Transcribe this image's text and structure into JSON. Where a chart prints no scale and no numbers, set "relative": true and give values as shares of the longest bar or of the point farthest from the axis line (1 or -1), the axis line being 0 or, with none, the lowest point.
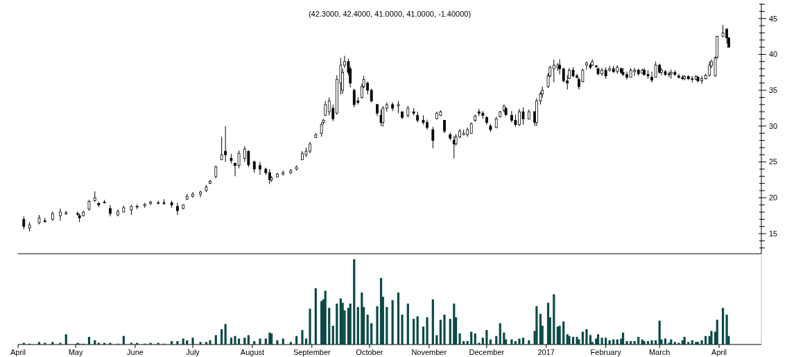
{
  "chart_data": [
    {
      "type": "candlestick",
      "title": "(42.3000, 42.4000, 41.0000, 41.0000, -1.40000)",
      "color": "#000000",
      "x": [
        "2016-04-04",
        "2016-04-07",
        "2016-04-12",
        "2016-04-15",
        "2016-04-19",
        "2016-04-23",
        "2016-04-26",
        "2016-05-02",
        "2016-05-03",
        "2016-05-05",
        "2016-05-08",
        "2016-05-11",
        "2016-05-13",
        "2016-05-16",
        "2016-05-19",
        "2016-05-23",
        "2016-05-26",
        "2016-05-30",
        "2016-06-02",
        "2016-06-06",
        "2016-06-09",
        "2016-06-13",
        "2016-06-16",
        "2016-06-20",
        "2016-06-23",
        "2016-06-26",
        "2016-06-28",
        "2016-07-01",
        "2016-07-05",
        "2016-07-08",
        "2016-07-10",
        "2016-07-13",
        "2016-07-16",
        "2016-07-18",
        "2016-07-21",
        "2016-07-23",
        "2016-07-25",
        "2016-07-28",
        "2016-07-30",
        "2016-08-02",
        "2016-08-05",
        "2016-08-08",
        "2016-08-10",
        "2016-08-11",
        "2016-08-14",
        "2016-08-17",
        "2016-08-21",
        "2016-08-24",
        "2016-08-27",
        "2016-08-29",
        "2016-08-31",
        "2016-09-03",
        "2016-09-06",
        "2016-09-07",
        "2016-09-08",
        "2016-09-10",
        "2016-09-12",
        "2016-09-14",
        "2016-09-16",
        "2016-09-17",
        "2016-09-18",
        "2016-09-20",
        "2016-09-21",
        "2016-09-23",
        "2016-09-25",
        "2016-09-27",
        "2016-09-28",
        "2016-09-30",
        "2016-10-02",
        "2016-10-05",
        "2016-10-07",
        "2016-10-08",
        "2016-10-10",
        "2016-10-13",
        "2016-10-16",
        "2016-10-18",
        "2016-10-21",
        "2016-10-24",
        "2016-10-26",
        "2016-10-29",
        "2016-10-31",
        "2016-11-03",
        "2016-11-05",
        "2016-11-07",
        "2016-11-09",
        "2016-11-12",
        "2016-11-14",
        "2016-11-15",
        "2016-11-17",
        "2016-11-19",
        "2016-11-21",
        "2016-11-23",
        "2016-11-25",
        "2016-11-27",
        "2016-11-29",
        "2016-12-01",
        "2016-12-03",
        "2016-12-06",
        "2016-12-08",
        "2016-12-10",
        "2016-12-11",
        "2016-12-14",
        "2016-12-16",
        "2016-12-18",
        "2016-12-20",
        "2016-12-23",
        "2016-12-26",
        "2016-12-27",
        "2016-12-29",
        "2016-12-30",
        "2017-01-02",
        "2017-01-03",
        "2017-01-05",
        "2017-01-07",
        "2017-01-08",
        "2017-01-10",
        "2017-01-12",
        "2017-01-13",
        "2017-01-15",
        "2017-01-17",
        "2017-01-18",
        "2017-01-20",
        "2017-01-22",
        "2017-01-24",
        "2017-01-25",
        "2017-01-27",
        "2017-01-28",
        "2017-01-30",
        "2017-02-01",
        "2017-02-03",
        "2017-02-05",
        "2017-02-07",
        "2017-02-09",
        "2017-02-10",
        "2017-02-12",
        "2017-02-14",
        "2017-02-16",
        "2017-02-18",
        "2017-02-20",
        "2017-02-21",
        "2017-02-23",
        "2017-02-25",
        "2017-02-27",
        "2017-03-01",
        "2017-03-02",
        "2017-03-04",
        "2017-03-06",
        "2017-03-07",
        "2017-03-09",
        "2017-03-11",
        "2017-03-13",
        "2017-03-14",
        "2017-03-16",
        "2017-03-18",
        "2017-03-20",
        "2017-03-21",
        "2017-03-23",
        "2017-03-25",
        "2017-03-27",
        "2017-03-28",
        "2017-03-30",
        "2017-03-31",
        "2017-04-03",
        "2017-04-05",
        "2017-04-06"
      ],
      "ohlc": [
        [
          17.0,
          17.4,
          15.6,
          16.0
        ],
        [
          15.8,
          16.6,
          15.3,
          16.2
        ],
        [
          16.5,
          17.6,
          16.3,
          17.2
        ],
        [
          16.8,
          17.2,
          16.5,
          16.7
        ],
        [
          17.0,
          18.1,
          16.8,
          17.8
        ],
        [
          17.5,
          18.5,
          16.8,
          18.0
        ],
        [
          17.8,
          18.2,
          17.6,
          17.9
        ],
        [
          17.8,
          18.1,
          17.5,
          17.7
        ],
        [
          17.5,
          17.8,
          16.6,
          17.2
        ],
        [
          17.5,
          18.2,
          17.4,
          18.0
        ],
        [
          18.4,
          19.7,
          18.2,
          19.5
        ],
        [
          19.6,
          20.9,
          19.4,
          20.0
        ],
        [
          19.2,
          19.4,
          18.7,
          19.0
        ],
        [
          19.4,
          19.7,
          19.2,
          19.3
        ],
        [
          18.5,
          19.0,
          17.4,
          17.8
        ],
        [
          17.6,
          18.4,
          17.4,
          18.1
        ],
        [
          18.0,
          18.9,
          18.0,
          18.6
        ],
        [
          18.3,
          19.0,
          17.6,
          18.8
        ],
        [
          18.7,
          19.1,
          18.4,
          18.8
        ],
        [
          18.9,
          19.3,
          18.6,
          19.1
        ],
        [
          19.2,
          19.6,
          19.0,
          19.4
        ],
        [
          19.2,
          19.6,
          19.1,
          19.3
        ],
        [
          19.3,
          19.8,
          19.0,
          19.2
        ],
        [
          19.3,
          19.6,
          18.6,
          19.0
        ],
        [
          18.8,
          19.3,
          17.6,
          18.2
        ],
        [
          18.5,
          19.1,
          18.4,
          19.0
        ],
        [
          19.8,
          20.5,
          19.7,
          20.2
        ],
        [
          20.2,
          20.8,
          20.0,
          20.5
        ],
        [
          20.5,
          21.0,
          20.1,
          20.8
        ],
        [
          21.0,
          21.8,
          20.8,
          21.5
        ],
        [
          22.0,
          22.5,
          21.9,
          22.3
        ],
        [
          23.0,
          24.5,
          22.7,
          24.3
        ],
        [
          25.3,
          28.5,
          25.3,
          26.0
        ],
        [
          26.5,
          30.0,
          25.0,
          26.0
        ],
        [
          25.5,
          26.1,
          24.8,
          25.2
        ],
        [
          24.8,
          24.9,
          23.0,
          24.5
        ],
        [
          24.5,
          26.6,
          24.1,
          26.2
        ],
        [
          25.5,
          27.2,
          25.0,
          26.8
        ],
        [
          26.5,
          26.6,
          24.3,
          24.6
        ],
        [
          25.0,
          25.2,
          23.5,
          24.0
        ],
        [
          24.5,
          25.0,
          23.2,
          24.0
        ],
        [
          24.0,
          24.2,
          23.2,
          23.5
        ],
        [
          23.5,
          24.0,
          21.9,
          22.5
        ],
        [
          22.5,
          23.0,
          22.2,
          22.8
        ],
        [
          22.9,
          23.5,
          22.9,
          23.3
        ],
        [
          23.3,
          23.8,
          23.1,
          23.5
        ],
        [
          23.5,
          24.0,
          23.3,
          23.8
        ],
        [
          24.0,
          24.5,
          23.8,
          24.3
        ],
        [
          25.3,
          26.5,
          25.3,
          26.2
        ],
        [
          26.0,
          27.0,
          25.7,
          26.5
        ],
        [
          26.5,
          27.8,
          26.2,
          27.5
        ],
        [
          28.4,
          29.0,
          28.4,
          28.8
        ],
        [
          29.0,
          30.5,
          28.5,
          30.2
        ],
        [
          30.5,
          31.0,
          30.2,
          30.8
        ],
        [
          31.5,
          33.5,
          31.4,
          33.0
        ],
        [
          32.0,
          34.0,
          31.5,
          33.5
        ],
        [
          32.5,
          33.0,
          30.7,
          31.0
        ],
        [
          31.8,
          37.1,
          31.6,
          36.5
        ],
        [
          36.0,
          39.5,
          34.4,
          38.5
        ],
        [
          35.0,
          38.0,
          34.5,
          37.5
        ],
        [
          38.5,
          39.8,
          38.1,
          39.0
        ],
        [
          39.0,
          39.4,
          37.1,
          37.5
        ],
        [
          38.0,
          38.3,
          35.4,
          36.0
        ],
        [
          35.0,
          35.2,
          32.6,
          33.0
        ],
        [
          33.5,
          34.0,
          33.0,
          33.3
        ],
        [
          34.0,
          35.9,
          33.8,
          35.5
        ],
        [
          35.5,
          37.0,
          35.3,
          36.5
        ],
        [
          36.0,
          36.2,
          34.4,
          35.0
        ],
        [
          35.0,
          35.2,
          33.3,
          33.5
        ],
        [
          33.0,
          33.1,
          31.4,
          31.8
        ],
        [
          31.5,
          32.3,
          30.0,
          30.5
        ],
        [
          30.5,
          32.8,
          29.9,
          32.5
        ],
        [
          32.5,
          33.3,
          32.0,
          33.0
        ],
        [
          33.0,
          33.3,
          32.1,
          32.5
        ],
        [
          32.8,
          33.5,
          31.8,
          33.0
        ],
        [
          32.0,
          32.0,
          31.0,
          31.2
        ],
        [
          31.5,
          32.8,
          31.2,
          32.5
        ],
        [
          32.0,
          32.5,
          31.5,
          31.8
        ],
        [
          31.5,
          32.0,
          30.5,
          30.8
        ],
        [
          30.8,
          31.5,
          30.2,
          30.5
        ],
        [
          30.5,
          30.9,
          29.5,
          29.8
        ],
        [
          29.5,
          29.9,
          26.9,
          28.0
        ],
        [
          31.0,
          32.0,
          31.0,
          31.8
        ],
        [
          31.5,
          32.2,
          31.4,
          32.0
        ],
        [
          30.8,
          30.8,
          29.0,
          29.3
        ],
        [
          28.8,
          29.1,
          28.0,
          28.3
        ],
        [
          28.0,
          28.6,
          25.5,
          27.5
        ],
        [
          27.5,
          28.9,
          27.3,
          28.5
        ],
        [
          28.5,
          29.6,
          28.3,
          29.3
        ],
        [
          28.8,
          29.5,
          28.7,
          29.0
        ],
        [
          28.8,
          29.8,
          28.5,
          29.5
        ],
        [
          29.0,
          30.5,
          28.9,
          30.3
        ],
        [
          30.8,
          31.6,
          30.6,
          31.4
        ],
        [
          32.0,
          32.4,
          31.4,
          31.8
        ],
        [
          31.8,
          32.1,
          31.0,
          31.5
        ],
        [
          31.2,
          31.4,
          30.2,
          30.5
        ],
        [
          30.0,
          30.3,
          29.2,
          29.5
        ],
        [
          29.8,
          31.3,
          29.7,
          31.0
        ],
        [
          31.3,
          32.1,
          31.2,
          32.0
        ],
        [
          32.2,
          33.0,
          31.9,
          32.8
        ],
        [
          32.5,
          32.6,
          31.4,
          31.6
        ],
        [
          31.5,
          32.1,
          30.5,
          30.8
        ],
        [
          30.8,
          31.6,
          29.9,
          30.2
        ],
        [
          30.2,
          32.4,
          30.0,
          32.0
        ],
        [
          32.0,
          32.6,
          30.2,
          31.0
        ],
        [
          31.0,
          32.3,
          30.9,
          32.0
        ],
        [
          32.0,
          32.1,
          30.0,
          30.5
        ],
        [
          30.5,
          33.9,
          30.0,
          33.5
        ],
        [
          33.5,
          34.8,
          33.0,
          34.5
        ],
        [
          34.5,
          35.5,
          34.0,
          35.0
        ],
        [
          35.5,
          37.4,
          35.3,
          37.0
        ],
        [
          37.0,
          38.4,
          36.8,
          38.2
        ],
        [
          38.0,
          39.3,
          36.1,
          38.5
        ],
        [
          38.2,
          38.8,
          37.7,
          38.5
        ],
        [
          38.5,
          39.3,
          37.2,
          38.0
        ],
        [
          38.0,
          38.1,
          36.1,
          36.3
        ],
        [
          36.3,
          37.1,
          35.1,
          36.0
        ],
        [
          36.6,
          38.1,
          36.6,
          37.8
        ],
        [
          37.8,
          38.2,
          36.8,
          37.0
        ],
        [
          37.0,
          37.3,
          36.6,
          36.8
        ],
        [
          36.5,
          36.8,
          35.1,
          35.5
        ],
        [
          36.2,
          38.0,
          36.1,
          37.8
        ],
        [
          38.5,
          39.0,
          37.9,
          38.8
        ],
        [
          38.5,
          38.8,
          37.9,
          38.2
        ],
        [
          38.5,
          39.3,
          38.4,
          39.0
        ],
        [
          38.4,
          38.5,
          38.1,
          38.3
        ],
        [
          38.0,
          38.2,
          37.1,
          37.3
        ],
        [
          37.3,
          38.1,
          37.0,
          37.8
        ],
        [
          37.8,
          38.2,
          36.6,
          37.0
        ],
        [
          37.8,
          38.4,
          37.6,
          38.0
        ],
        [
          38.0,
          38.4,
          37.4,
          37.6
        ],
        [
          37.6,
          38.5,
          37.3,
          38.2
        ],
        [
          38.0,
          38.2,
          37.3,
          37.5
        ],
        [
          37.5,
          38.1,
          37.0,
          37.2
        ],
        [
          37.2,
          37.6,
          36.5,
          36.8
        ],
        [
          36.8,
          38.1,
          36.8,
          37.8
        ],
        [
          37.6,
          38.1,
          37.0,
          37.8
        ],
        [
          37.8,
          38.0,
          37.0,
          37.3
        ],
        [
          37.4,
          38.0,
          37.3,
          37.8
        ],
        [
          37.8,
          38.1,
          37.0,
          37.2
        ],
        [
          37.2,
          37.8,
          36.6,
          37.0
        ],
        [
          36.8,
          37.6,
          36.1,
          36.4
        ],
        [
          36.8,
          39.0,
          36.8,
          38.5
        ],
        [
          38.5,
          38.7,
          37.3,
          37.5
        ],
        [
          37.5,
          38.1,
          37.1,
          37.8
        ],
        [
          37.6,
          37.8,
          37.0,
          37.2
        ],
        [
          37.2,
          37.6,
          36.8,
          37.3
        ],
        [
          37.3,
          37.9,
          36.6,
          37.5
        ],
        [
          37.5,
          37.8,
          37.0,
          37.2
        ],
        [
          37.0,
          37.3,
          36.6,
          36.8
        ],
        [
          36.8,
          37.1,
          36.4,
          36.6
        ],
        [
          36.6,
          37.1,
          36.4,
          36.9
        ],
        [
          36.9,
          37.1,
          36.4,
          36.6
        ],
        [
          36.6,
          37.0,
          36.1,
          36.5
        ],
        [
          36.5,
          37.1,
          36.4,
          36.9
        ],
        [
          36.8,
          37.0,
          36.1,
          36.3
        ],
        [
          36.3,
          37.0,
          35.9,
          36.6
        ],
        [
          36.6,
          37.3,
          36.5,
          37.1
        ],
        [
          37.1,
          39.0,
          36.9,
          38.5
        ],
        [
          38.4,
          39.3,
          38.1,
          39.0
        ],
        [
          37.0,
          39.7,
          36.9,
          39.5
        ],
        [
          39.6,
          42.6,
          39.4,
          42.5
        ],
        [
          42.5,
          44.1,
          42.4,
          43.0
        ],
        [
          43.5,
          43.7,
          41.5,
          42.3
        ],
        [
          42.3,
          42.4,
          41.0,
          41.0
        ]
      ],
      "xlim": [
        "2016-04-01",
        "2017-04-23"
      ],
      "ylim": [
        12.2,
        47.1
      ],
      "yticks": [
        {
          "value": 13,
          "label": null
        },
        {
          "value": 14,
          "label": null
        },
        15,
        {
          "value": 16,
          "label": null
        },
        {
          "value": 17,
          "label": null
        },
        {
          "value": 18,
          "label": null
        },
        {
          "value": 19,
          "label": null
        },
        20,
        {
          "value": 21,
          "label": null
        },
        {
          "value": 22,
          "label": null
        },
        {
          "value": 23,
          "label": null
        },
        {
          "value": 24,
          "label": null
        },
        25,
        {
          "value": 26,
          "label": null
        },
        {
          "value": 27,
          "label": null
        },
        {
          "value": 28,
          "label": null
        },
        {
          "value": 29,
          "label": null
        },
        30,
        {
          "value": 31,
          "label": null
        },
        {
          "value": 32,
          "label": null
        },
        {
          "value": 33,
          "label": null
        },
        {
          "value": 34,
          "label": null
        },
        35,
        {
          "value": 36,
          "label": null
        },
        {
          "value": 37,
          "label": null
        },
        {
          "value": 38,
          "label": null
        },
        {
          "value": 39,
          "label": null
        },
        40,
        {
          "value": 41,
          "label": null
        },
        {
          "value": 42,
          "label": null
        },
        {
          "value": 43,
          "label": null
        },
        {
          "value": 44,
          "label": null
        },
        45,
        {
          "value": 46,
          "label": null
        },
        {
          "value": 47,
          "label": null
        }
      ],
      "tick_labels": "y"
    },
    {
      "type": "bar",
      "relative": true,
      "color": "#0b4a47",
      "x": [
        "2016-04-04",
        "2016-04-07",
        "2016-04-12",
        "2016-04-15",
        "2016-04-19",
        "2016-04-23",
        "2016-04-26",
        "2016-05-02",
        "2016-05-03",
        "2016-05-05",
        "2016-05-08",
        "2016-05-11",
        "2016-05-13",
        "2016-05-16",
        "2016-05-19",
        "2016-05-23",
        "2016-05-26",
        "2016-05-30",
        "2016-06-02",
        "2016-06-06",
        "2016-06-09",
        "2016-06-13",
        "2016-06-16",
        "2016-06-20",
        "2016-06-23",
        "2016-06-26",
        "2016-06-28",
        "2016-07-01",
        "2016-07-05",
        "2016-07-08",
        "2016-07-10",
        "2016-07-13",
        "2016-07-16",
        "2016-07-18",
        "2016-07-21",
        "2016-07-23",
        "2016-07-25",
        "2016-07-28",
        "2016-07-30",
        "2016-08-02",
        "2016-08-05",
        "2016-08-08",
        "2016-08-10",
        "2016-08-11",
        "2016-08-14",
        "2016-08-17",
        "2016-08-21",
        "2016-08-24",
        "2016-08-27",
        "2016-08-29",
        "2016-08-31",
        "2016-09-03",
        "2016-09-06",
        "2016-09-07",
        "2016-09-08",
        "2016-09-10",
        "2016-09-12",
        "2016-09-14",
        "2016-09-16",
        "2016-09-17",
        "2016-09-18",
        "2016-09-20",
        "2016-09-21",
        "2016-09-23",
        "2016-09-25",
        "2016-09-27",
        "2016-09-28",
        "2016-09-30",
        "2016-10-02",
        "2016-10-05",
        "2016-10-07",
        "2016-10-08",
        "2016-10-10",
        "2016-10-13",
        "2016-10-16",
        "2016-10-18",
        "2016-10-21",
        "2016-10-24",
        "2016-10-26",
        "2016-10-29",
        "2016-10-31",
        "2016-11-03",
        "2016-11-05",
        "2016-11-07",
        "2016-11-09",
        "2016-11-12",
        "2016-11-14",
        "2016-11-15",
        "2016-11-17",
        "2016-11-19",
        "2016-11-21",
        "2016-11-23",
        "2016-11-25",
        "2016-11-27",
        "2016-11-29",
        "2016-12-01",
        "2016-12-03",
        "2016-12-06",
        "2016-12-08",
        "2016-12-10",
        "2016-12-11",
        "2016-12-14",
        "2016-12-16",
        "2016-12-18",
        "2016-12-20",
        "2016-12-23",
        "2016-12-26",
        "2016-12-27",
        "2016-12-29",
        "2016-12-30",
        "2017-01-02",
        "2017-01-03",
        "2017-01-05",
        "2017-01-07",
        "2017-01-08",
        "2017-01-10",
        "2017-01-12",
        "2017-01-13",
        "2017-01-15",
        "2017-01-17",
        "2017-01-18",
        "2017-01-20",
        "2017-01-22",
        "2017-01-24",
        "2017-01-25",
        "2017-01-27",
        "2017-01-28",
        "2017-01-30",
        "2017-02-01",
        "2017-02-03",
        "2017-02-05",
        "2017-02-07",
        "2017-02-09",
        "2017-02-10",
        "2017-02-12",
        "2017-02-14",
        "2017-02-16",
        "2017-02-18",
        "2017-02-20",
        "2017-02-21",
        "2017-02-23",
        "2017-02-25",
        "2017-02-27",
        "2017-03-01",
        "2017-03-02",
        "2017-03-04",
        "2017-03-06",
        "2017-03-07",
        "2017-03-09",
        "2017-03-11",
        "2017-03-13",
        "2017-03-14",
        "2017-03-16",
        "2017-03-18",
        "2017-03-20",
        "2017-03-21",
        "2017-03-23",
        "2017-03-25",
        "2017-03-27",
        "2017-03-28",
        "2017-03-30",
        "2017-03-31",
        "2017-04-03",
        "2017-04-05",
        "2017-04-06"
      ],
      "values": [
        0.02,
        0.01,
        0.03,
        0.02,
        0.03,
        0.02,
        0.12,
        0.02,
        0.01,
        0.01,
        0.09,
        0.05,
        0.02,
        0.02,
        0.02,
        0.01,
        0.1,
        0.02,
        0.02,
        0.01,
        0.02,
        0.02,
        0.01,
        0.04,
        0.04,
        0.07,
        0.05,
        0.08,
        0.03,
        0.03,
        0.05,
        0.11,
        0.18,
        0.24,
        0.08,
        0.1,
        0.07,
        0.08,
        0.11,
        0.04,
        0.07,
        0.07,
        0.14,
        0.13,
        0.05,
        0.07,
        0.03,
        0.1,
        0.17,
        0.07,
        0.42,
        0.66,
        0.51,
        0.53,
        0.63,
        0.43,
        0.22,
        0.48,
        0.54,
        0.49,
        0.4,
        0.43,
        0.48,
        1,
        0.44,
        0.61,
        0.44,
        0.35,
        0.25,
        0.45,
        0.78,
        0.56,
        0.44,
        0.52,
        0.61,
        0.35,
        0.48,
        0.3,
        0.33,
        0.21,
        0.32,
        0.53,
        0.11,
        0.29,
        0.35,
        0.3,
        0.48,
        0.32,
        0.13,
        0.04,
        0.04,
        0.15,
        0.13,
        0.02,
        0.08,
        0.17,
        0.06,
        0.1,
        0.25,
        0.14,
        0.06,
        0.06,
        0.04,
        0.07,
        0.08,
        0.05,
        0.16,
        0.45,
        0.36,
        0.22,
        0.49,
        0.32,
        0.59,
        0.21,
        0.22,
        0.27,
        0.12,
        0.1,
        0.09,
        0.09,
        0.06,
        0.15,
        0.18,
        0.11,
        0.03,
        0.07,
        0.12,
        0.08,
        0.08,
        0.05,
        0.06,
        0.06,
        0.07,
        0.14,
        0.04,
        0.04,
        0.04,
        0.09,
        0.06,
        0.04,
        0.04,
        0.05,
        0.05,
        0.28,
        0.06,
        0.07,
        0.02,
        0.06,
        0.03,
        0.02,
        0.05,
        0.09,
        0.03,
        0.05,
        0.03,
        0.03,
        0.05,
        0.1,
        0.1,
        0.16,
        0.15,
        0.29,
        0.43,
        0.35,
        0.1
      ],
      "xlim": [
        "2016-04-01",
        "2017-04-23"
      ],
      "xticks": [
        {
          "value": "2016-04-01",
          "label": "April"
        },
        {
          "value": "2016-05-01",
          "label": "May"
        },
        {
          "value": "2016-06-01",
          "label": "June"
        },
        {
          "value": "2016-07-01",
          "label": "July"
        },
        {
          "value": "2016-08-01",
          "label": "August"
        },
        {
          "value": "2016-09-01",
          "label": "September"
        },
        {
          "value": "2016-10-01",
          "label": "October"
        },
        {
          "value": "2016-11-01",
          "label": "November"
        },
        {
          "value": "2016-12-01",
          "label": "December"
        },
        {
          "value": "2017-01-01",
          "label": "2017"
        },
        {
          "value": "2017-02-01",
          "label": "February"
        },
        {
          "value": "2017-03-01",
          "label": "March"
        },
        {
          "value": "2017-04-01",
          "label": "April"
        }
      ]
    }
  ]
}
